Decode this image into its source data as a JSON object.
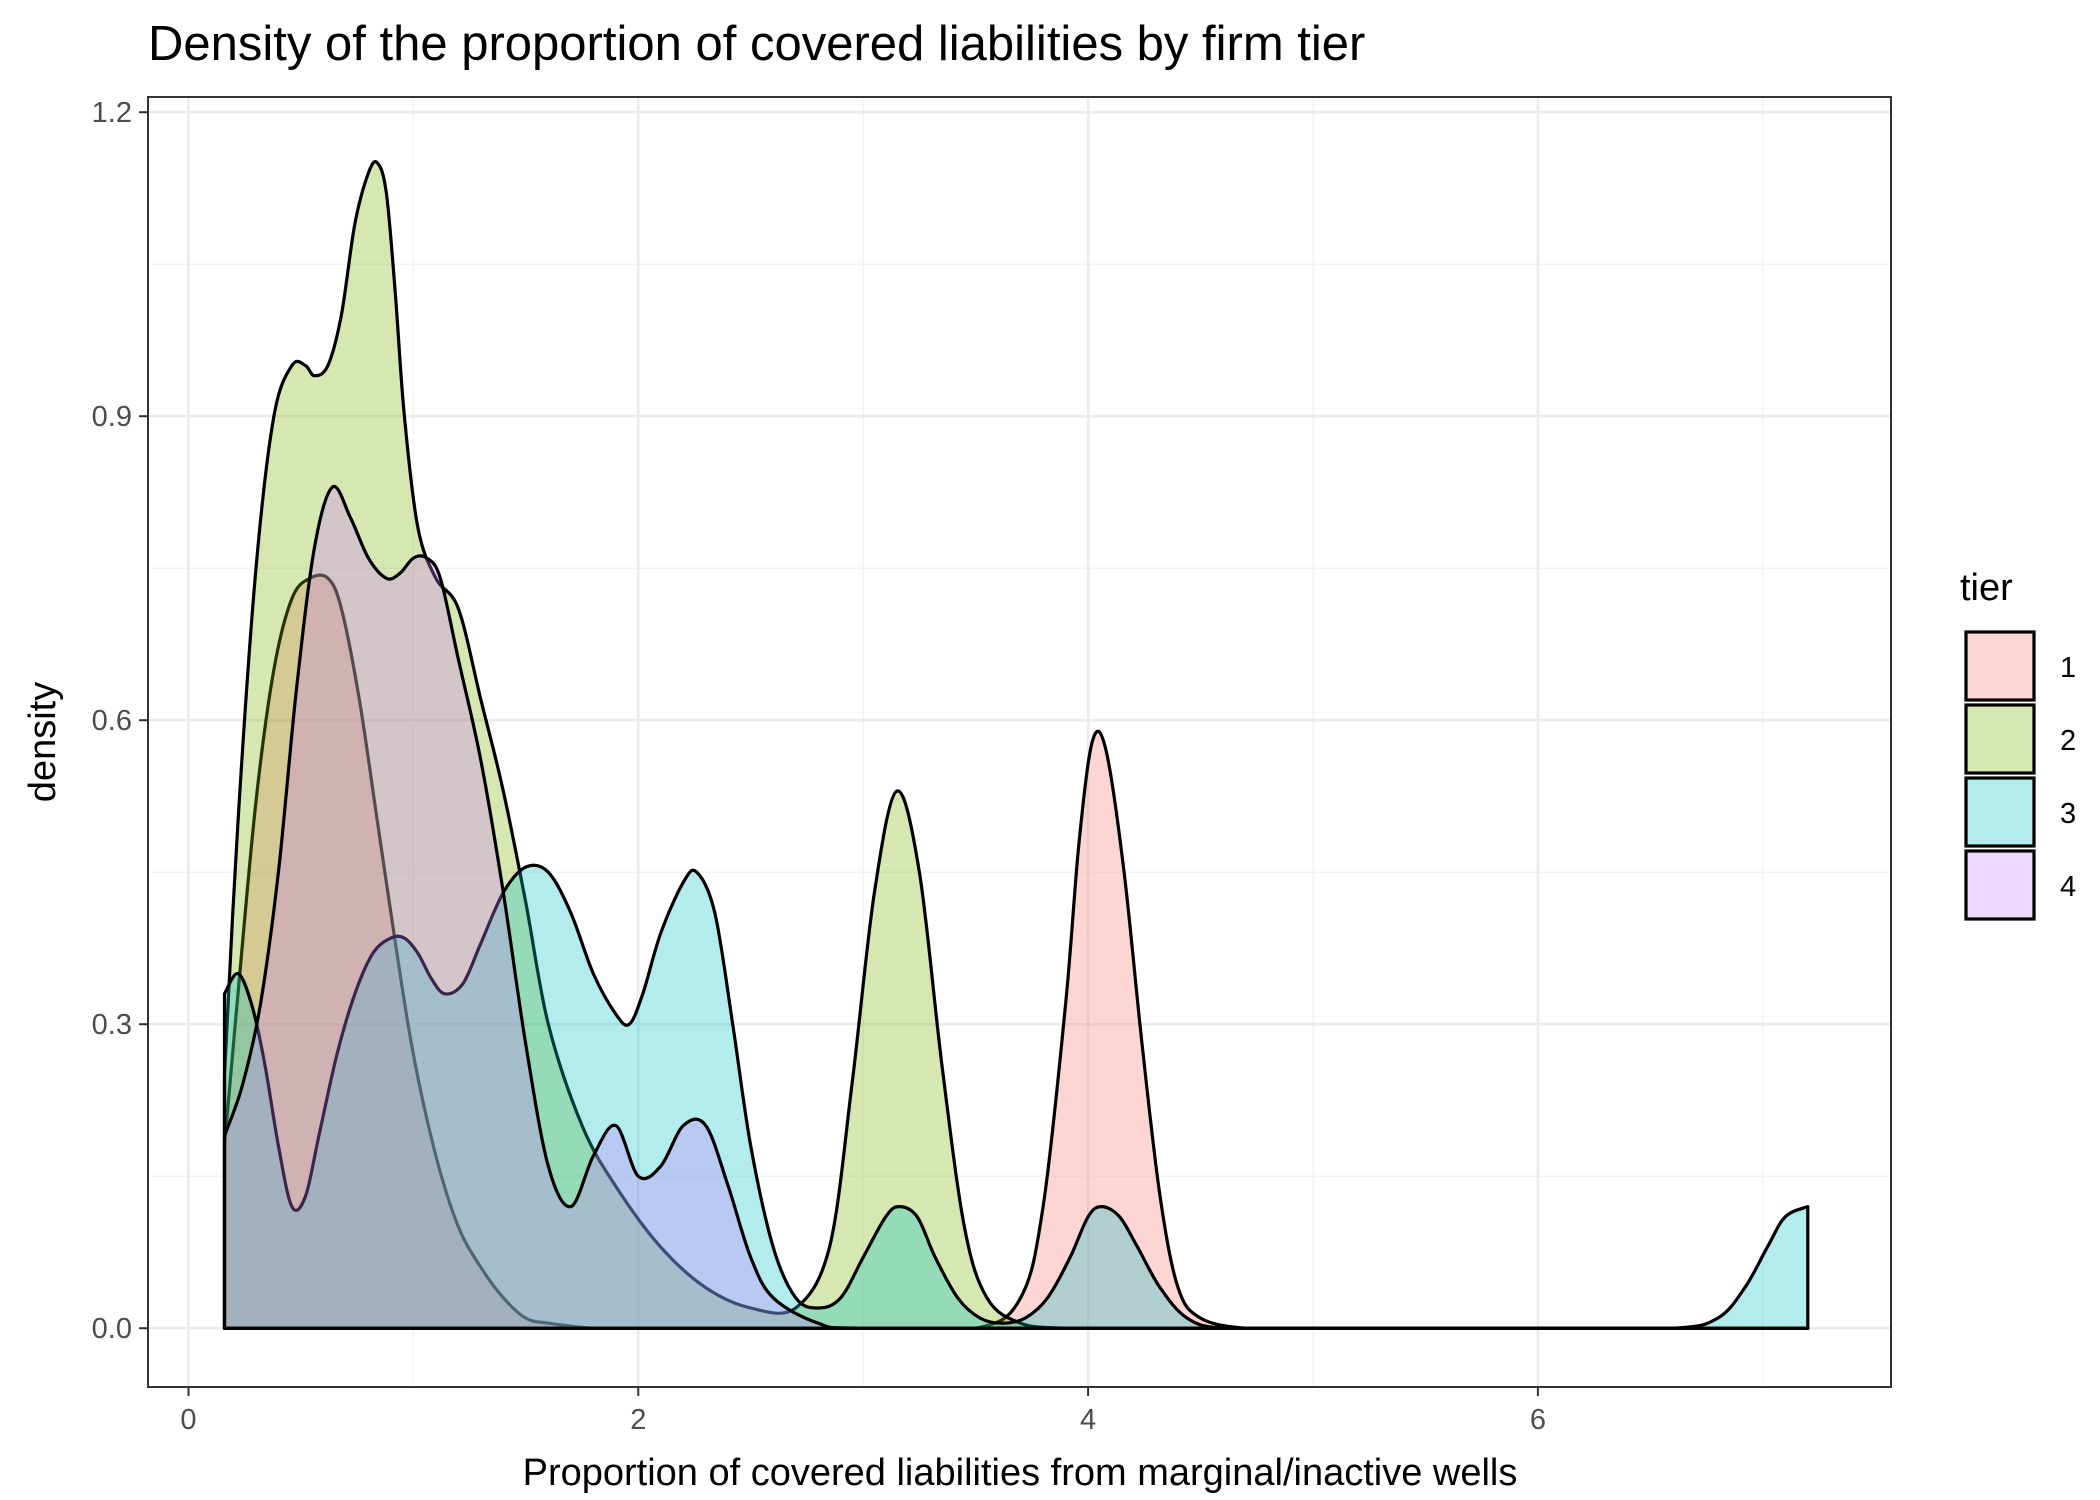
{
  "chart_data": {
    "type": "area",
    "subtype": "density",
    "title": "Density of the proportion of covered liabilities by firm tier",
    "xlabel": "Proportion of covered liabilities from marginal/inactive wells",
    "ylabel": "density",
    "xlim": [
      -0.18,
      7.57
    ],
    "ylim": [
      -0.058,
      1.215
    ],
    "x_ticks": [
      0,
      2,
      4,
      6
    ],
    "y_ticks": [
      0.0,
      0.3,
      0.6,
      0.9,
      1.2
    ],
    "y_tick_labels": [
      "0.0",
      "0.3",
      "0.6",
      "0.9",
      "1.2"
    ],
    "grid": true,
    "legend": {
      "title": "tier",
      "position": "right"
    },
    "series": [
      {
        "name": "1",
        "color": "#F8766D",
        "x": [
          0.16,
          0.22,
          0.3,
          0.38,
          0.46,
          0.54,
          0.62,
          0.68,
          0.76,
          0.84,
          0.92,
          1.0,
          1.1,
          1.2,
          1.3,
          1.4,
          1.5,
          1.6,
          1.8,
          2.0,
          2.5,
          3.0,
          3.5,
          3.7,
          3.8,
          3.9,
          3.96,
          4.02,
          4.08,
          4.16,
          4.24,
          4.32,
          4.4,
          4.5,
          4.7,
          5.0,
          6.0,
          7.2
        ],
        "y": [
          0.18,
          0.33,
          0.52,
          0.65,
          0.72,
          0.74,
          0.74,
          0.71,
          0.62,
          0.5,
          0.38,
          0.27,
          0.17,
          0.1,
          0.06,
          0.03,
          0.01,
          0.005,
          0.0,
          0.0,
          0.0,
          0.0,
          0.0,
          0.03,
          0.12,
          0.32,
          0.48,
          0.58,
          0.57,
          0.45,
          0.28,
          0.13,
          0.04,
          0.01,
          0.0,
          0.0,
          0.0,
          0.0
        ]
      },
      {
        "name": "2",
        "color": "#7CAE00",
        "x": [
          0.16,
          0.22,
          0.3,
          0.38,
          0.46,
          0.52,
          0.56,
          0.62,
          0.68,
          0.74,
          0.8,
          0.84,
          0.88,
          0.92,
          0.96,
          1.02,
          1.1,
          1.2,
          1.3,
          1.4,
          1.5,
          1.6,
          1.75,
          1.9,
          2.1,
          2.3,
          2.5,
          2.7,
          2.85,
          2.95,
          3.05,
          3.15,
          3.25,
          3.35,
          3.45,
          3.55,
          3.7,
          3.9,
          4.2,
          5.0,
          7.2
        ],
        "y": [
          0.25,
          0.5,
          0.75,
          0.9,
          0.95,
          0.95,
          0.94,
          0.95,
          1.0,
          1.09,
          1.14,
          1.15,
          1.12,
          1.02,
          0.9,
          0.79,
          0.74,
          0.71,
          0.62,
          0.53,
          0.42,
          0.3,
          0.2,
          0.14,
          0.08,
          0.04,
          0.02,
          0.02,
          0.08,
          0.24,
          0.43,
          0.53,
          0.45,
          0.26,
          0.1,
          0.03,
          0.005,
          0.0,
          0.0,
          0.0,
          0.0
        ]
      },
      {
        "name": "3",
        "color": "#00BFC4",
        "x": [
          0.16,
          0.22,
          0.28,
          0.34,
          0.4,
          0.46,
          0.52,
          0.58,
          0.66,
          0.74,
          0.82,
          0.9,
          0.96,
          1.02,
          1.08,
          1.14,
          1.22,
          1.3,
          1.4,
          1.5,
          1.6,
          1.7,
          1.8,
          1.9,
          1.96,
          2.02,
          2.1,
          2.2,
          2.26,
          2.34,
          2.42,
          2.5,
          2.6,
          2.7,
          2.8,
          2.9,
          3.0,
          3.1,
          3.16,
          3.24,
          3.32,
          3.42,
          3.52,
          3.62,
          3.72,
          3.82,
          3.92,
          4.0,
          4.06,
          4.14,
          4.22,
          4.32,
          4.44,
          4.6,
          5.0,
          6.0,
          6.6,
          6.8,
          6.92,
          7.02,
          7.1,
          7.2
        ],
        "y": [
          0.33,
          0.35,
          0.32,
          0.26,
          0.18,
          0.12,
          0.13,
          0.19,
          0.27,
          0.33,
          0.37,
          0.385,
          0.385,
          0.37,
          0.345,
          0.33,
          0.34,
          0.38,
          0.43,
          0.455,
          0.45,
          0.41,
          0.35,
          0.31,
          0.3,
          0.33,
          0.39,
          0.44,
          0.45,
          0.41,
          0.3,
          0.18,
          0.08,
          0.03,
          0.02,
          0.03,
          0.07,
          0.11,
          0.12,
          0.11,
          0.07,
          0.03,
          0.01,
          0.005,
          0.01,
          0.03,
          0.07,
          0.11,
          0.12,
          0.11,
          0.08,
          0.04,
          0.01,
          0.0,
          0.0,
          0.0,
          0.0,
          0.01,
          0.04,
          0.08,
          0.11,
          0.12
        ]
      },
      {
        "name": "4",
        "color": "#C77CFF",
        "x": [
          0.16,
          0.24,
          0.32,
          0.4,
          0.48,
          0.56,
          0.64,
          0.72,
          0.8,
          0.88,
          0.94,
          1.0,
          1.06,
          1.12,
          1.2,
          1.3,
          1.4,
          1.5,
          1.6,
          1.7,
          1.8,
          1.9,
          2.0,
          2.1,
          2.2,
          2.3,
          2.4,
          2.5,
          2.6,
          2.8,
          3.0,
          4.0,
          5.0,
          7.2
        ],
        "y": [
          0.19,
          0.24,
          0.32,
          0.45,
          0.63,
          0.77,
          0.83,
          0.8,
          0.76,
          0.74,
          0.745,
          0.76,
          0.76,
          0.74,
          0.66,
          0.56,
          0.43,
          0.28,
          0.16,
          0.12,
          0.17,
          0.2,
          0.15,
          0.16,
          0.2,
          0.2,
          0.14,
          0.07,
          0.03,
          0.005,
          0.0,
          0.0,
          0.0,
          0.0
        ]
      }
    ]
  }
}
